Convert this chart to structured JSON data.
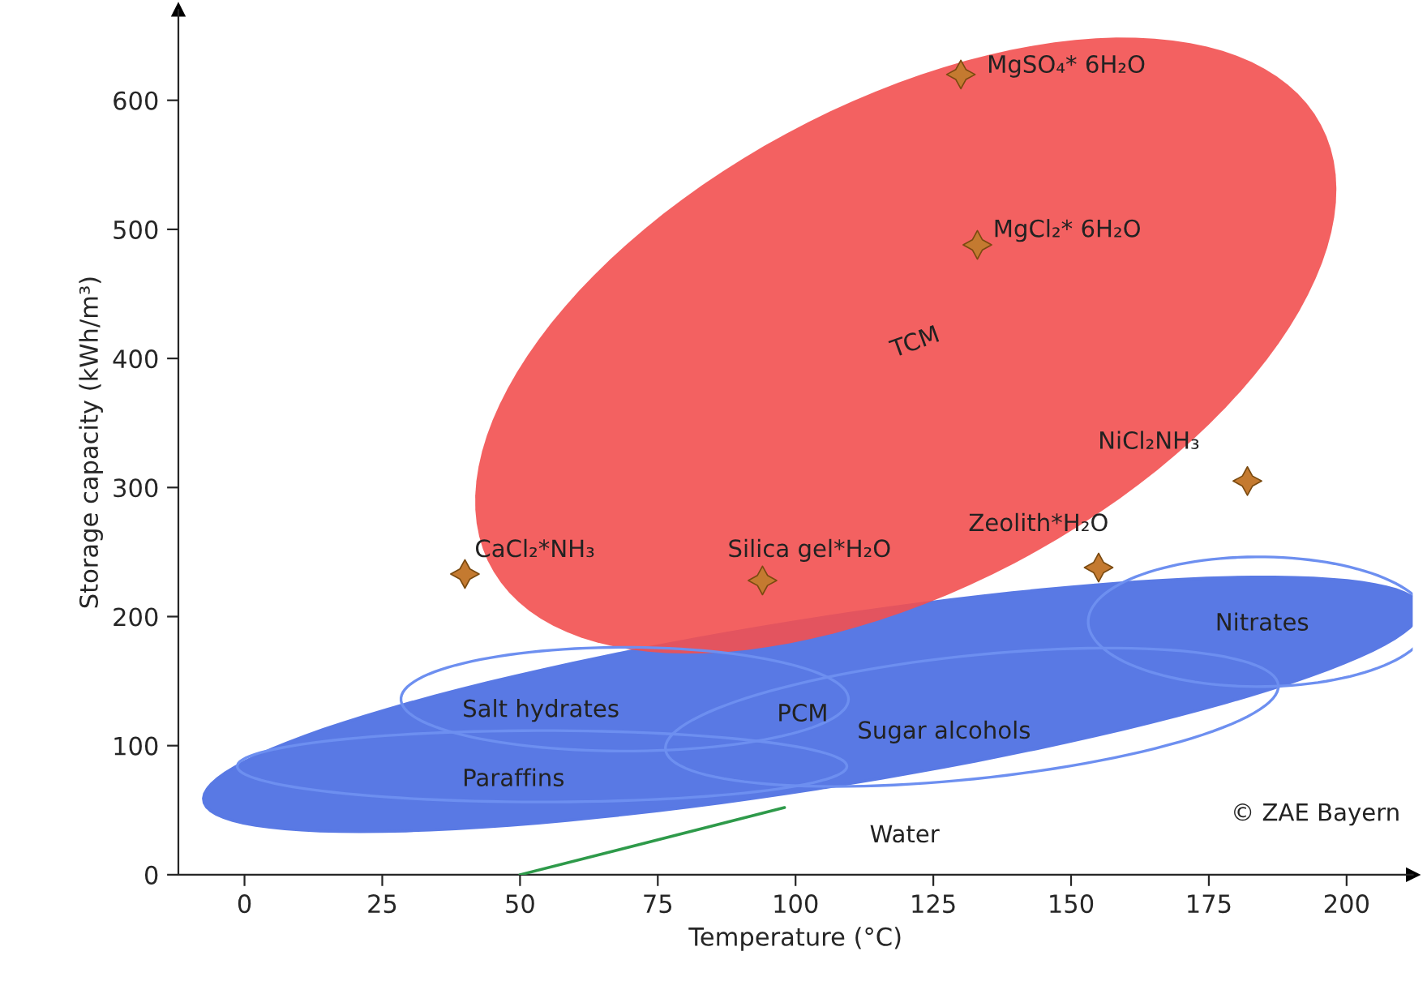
{
  "chart_data": {
    "type": "scatter",
    "xlabel": "Temperature (°C)",
    "ylabel": "Storage capacity (kWh/m³)",
    "x": [
      40,
      94,
      130,
      133,
      155,
      182
    ],
    "series": [
      {
        "color": "#c47a30",
        "values": [
          233,
          228,
          620,
          488,
          238,
          305
        ],
        "marker": "star"
      },
      {
        "type": "line",
        "color": "#2e9a4a",
        "x": [
          50,
          98
        ],
        "values": [
          0,
          52
        ]
      }
    ],
    "xlim": [
      -12,
      212
    ],
    "ylim": [
      0,
      670
    ],
    "xticks": [
      0,
      25,
      50,
      75,
      100,
      125,
      150,
      175,
      200
    ],
    "yticks": [
      0,
      100,
      200,
      300,
      400,
      500,
      600
    ],
    "grid": false,
    "annotations": [
      "MgSO₄* 6H₂O",
      "MgCl₂* 6H₂O",
      "NiCl₂NH₃",
      "Zeolith*H₂O",
      "Silica gel*H₂O",
      "CaCl₂*NH₃",
      "TCM",
      "PCM",
      "Salt hydrates",
      "Sugar alcohols",
      "Paraffins",
      "Nitrates",
      "Water",
      "© ZAE Bayern"
    ]
  }
}
